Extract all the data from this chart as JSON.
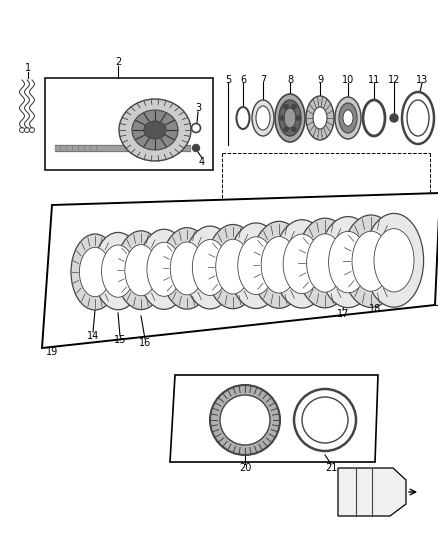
{
  "bg_color": "#ffffff",
  "lc": "#000000",
  "dg": "#444444",
  "mg": "#888888",
  "lg": "#cccccc"
}
